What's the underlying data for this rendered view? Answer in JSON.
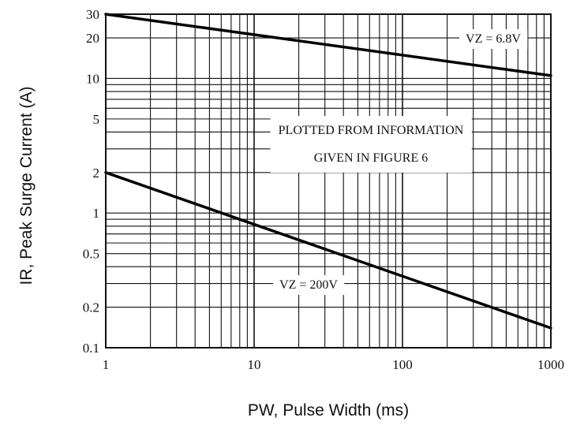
{
  "chart_data": {
    "type": "line",
    "title": "",
    "xlabel": "PW, Pulse Width (ms)",
    "ylabel": "IR, Peak Surge Current (A)",
    "x_scale": "log",
    "y_scale": "log",
    "xlim": [
      1,
      1000
    ],
    "ylim": [
      0.1,
      30
    ],
    "grid": true,
    "x_ticks": [
      1,
      10,
      100,
      1000
    ],
    "x_tick_labels": [
      "1",
      "10",
      "100",
      "1000"
    ],
    "y_ticks": [
      0.1,
      0.2,
      0.5,
      1,
      2,
      5,
      10,
      20,
      30
    ],
    "y_tick_labels": [
      "0.1",
      "0.2",
      "0.5",
      "1",
      "2",
      "5",
      "10",
      "20",
      "30"
    ],
    "series": [
      {
        "name": "VZ = 6.8V",
        "x": [
          1,
          1000
        ],
        "y": [
          30,
          10.5
        ]
      },
      {
        "name": "VZ = 200V",
        "x": [
          1,
          1000
        ],
        "y": [
          2,
          0.14
        ]
      }
    ],
    "annotations": [
      {
        "lines": [
          "PLOTTED FROM INFORMATION",
          "GIVEN IN FIGURE 6"
        ]
      }
    ]
  }
}
